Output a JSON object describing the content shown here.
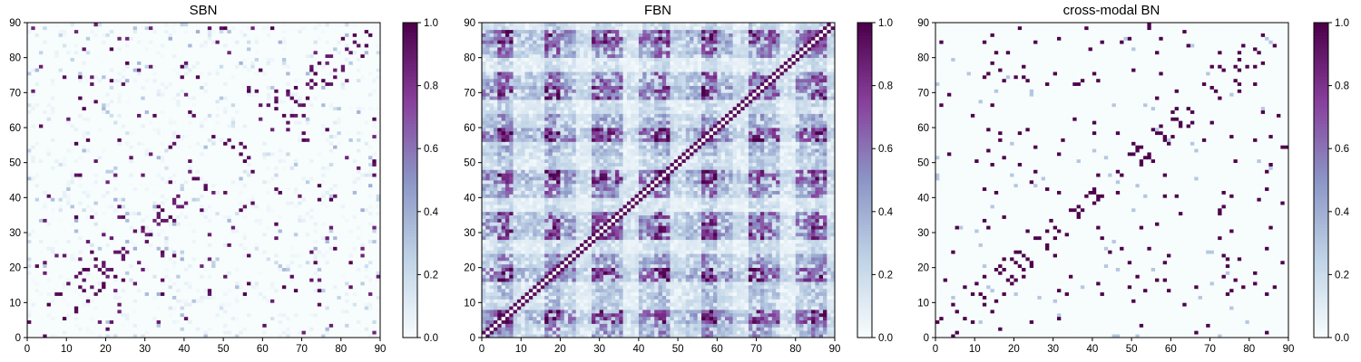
{
  "chart_data": [
    {
      "type": "heatmap",
      "title": "SBN",
      "xlim": [
        0,
        90
      ],
      "ylim": [
        0,
        90
      ],
      "x_ticks": [
        0,
        10,
        20,
        30,
        40,
        50,
        60,
        70,
        80,
        90
      ],
      "y_ticks": [
        0,
        10,
        20,
        30,
        40,
        50,
        60,
        70,
        80,
        90
      ],
      "colorbar": {
        "range": [
          0.0,
          1.0
        ],
        "ticks": [
          "0.0",
          "0.2",
          "0.4",
          "0.6",
          "0.8",
          "1.0"
        ]
      },
      "colormap": [
        "#f7fcfd",
        "#bfd3e6",
        "#8c96c6",
        "#88419d",
        "#4d004b"
      ],
      "matrix_size": 90,
      "pattern": "sparse",
      "seed": 11
    },
    {
      "type": "heatmap",
      "title": "FBN",
      "xlim": [
        0,
        90
      ],
      "ylim": [
        0,
        90
      ],
      "x_ticks": [
        0,
        10,
        20,
        30,
        40,
        50,
        60,
        70,
        80,
        90
      ],
      "y_ticks": [
        0,
        10,
        20,
        30,
        40,
        50,
        60,
        70,
        80,
        90
      ],
      "colorbar": {
        "range": [
          0.0,
          1.0
        ],
        "ticks": [
          "0.0",
          "0.2",
          "0.4",
          "0.6",
          "0.8",
          "1.0"
        ]
      },
      "colormap": [
        "#f7fcfd",
        "#bfd3e6",
        "#8c96c6",
        "#88419d",
        "#4d004b"
      ],
      "matrix_size": 90,
      "pattern": "dense",
      "seed": 23
    },
    {
      "type": "heatmap",
      "title": "cross-modal BN",
      "xlim": [
        0,
        90
      ],
      "ylim": [
        0,
        90
      ],
      "x_ticks": [
        0,
        10,
        20,
        30,
        40,
        50,
        60,
        70,
        80,
        90
      ],
      "y_ticks": [
        0,
        10,
        20,
        30,
        40,
        50,
        60,
        70,
        80,
        90
      ],
      "colorbar": {
        "range": [
          0.0,
          1.0
        ],
        "ticks": [
          "0.0",
          "0.2",
          "0.4",
          "0.6",
          "0.8",
          "1.0"
        ]
      },
      "colormap": [
        "#f7fcfd",
        "#bfd3e6",
        "#8c96c6",
        "#88419d",
        "#4d004b"
      ],
      "matrix_size": 90,
      "pattern": "binary",
      "seed": 11
    }
  ]
}
